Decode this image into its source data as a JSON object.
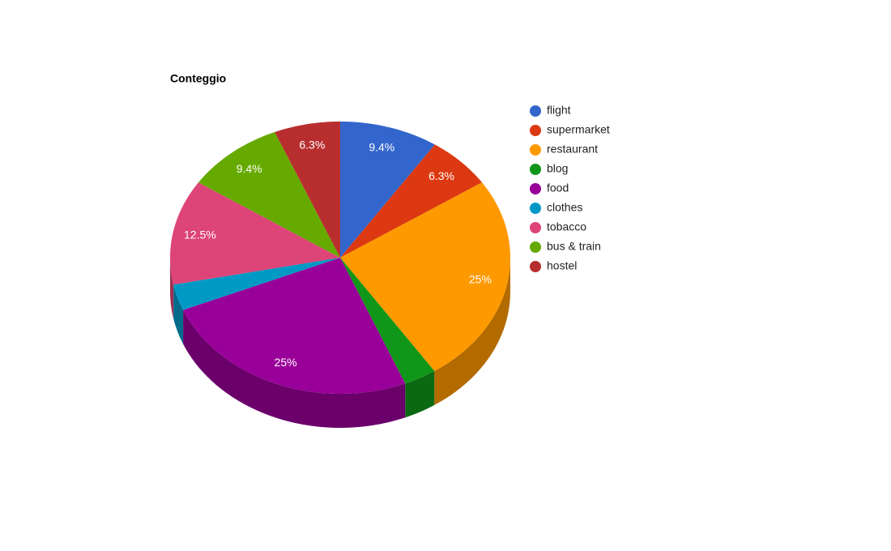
{
  "chart_data": {
    "type": "pie3d",
    "title": "Conteggio",
    "categories": [
      "flight",
      "supermarket",
      "restaurant",
      "blog",
      "food",
      "clothes",
      "tobacco",
      "bus & train",
      "hostel"
    ],
    "values": [
      9.4,
      6.3,
      25,
      3.1,
      25,
      3.1,
      12.5,
      9.4,
      6.3
    ],
    "value_labels": [
      "9.4%",
      "6.3%",
      "25%",
      null,
      "25%",
      null,
      "12.5%",
      "9.4%",
      "6.3%"
    ],
    "colors": [
      "#3366cc",
      "#dc3912",
      "#ff9900",
      "#109618",
      "#990099",
      "#0099c6",
      "#dd4477",
      "#66aa00",
      "#b82e2e"
    ],
    "legend": "right"
  }
}
